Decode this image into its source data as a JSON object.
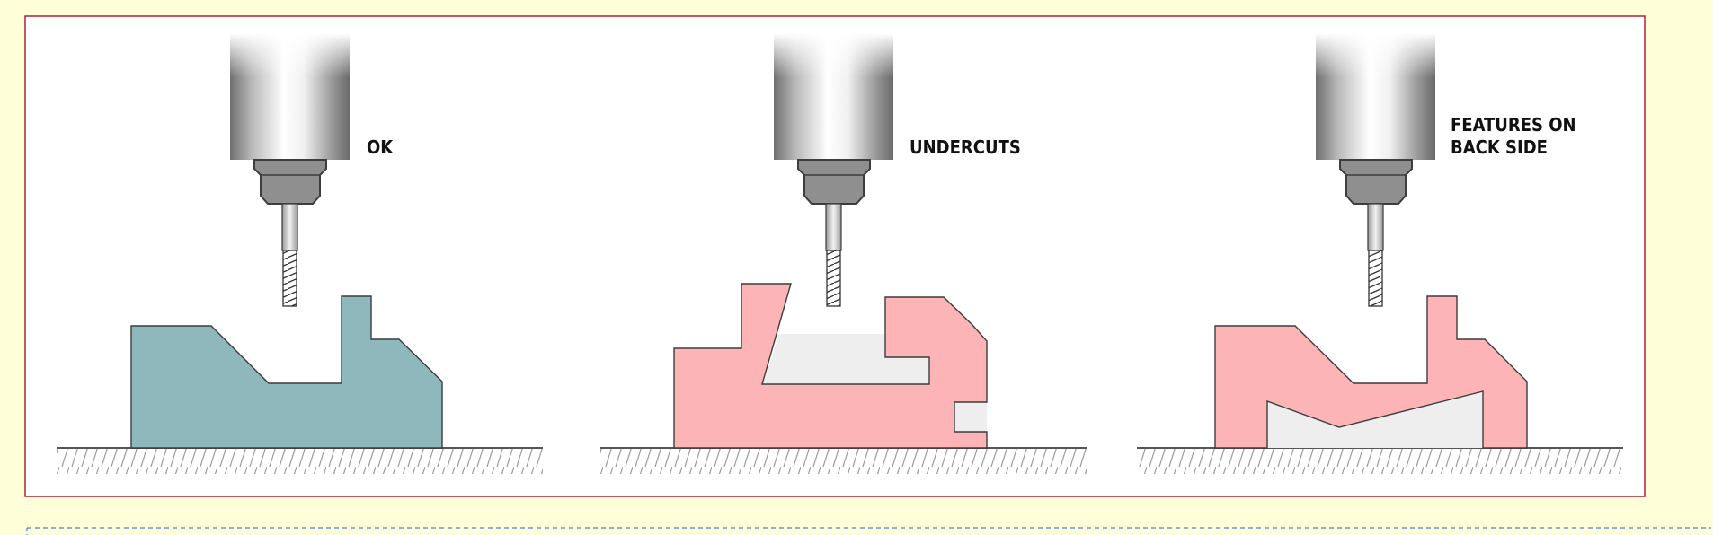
{
  "panels": [
    {
      "label_lines": [
        "OK"
      ],
      "part_style": "ok"
    },
    {
      "label_lines": [
        "UNDERCUTS"
      ],
      "part_style": "problem"
    },
    {
      "label_lines": [
        "FEATURES ON",
        "BACK SIDE"
      ],
      "part_style": "problem"
    }
  ],
  "colors": {
    "background": "#fefed9",
    "frame_border": "#b0203a",
    "frame_fill": "#ffffff",
    "part_ok": "#8fb8bd",
    "part_problem": "#fdb4b7",
    "part_stroke": "#3c3c3c",
    "unreachable_region": "#eeeeee",
    "dashed_line": "#4e7fd0"
  }
}
